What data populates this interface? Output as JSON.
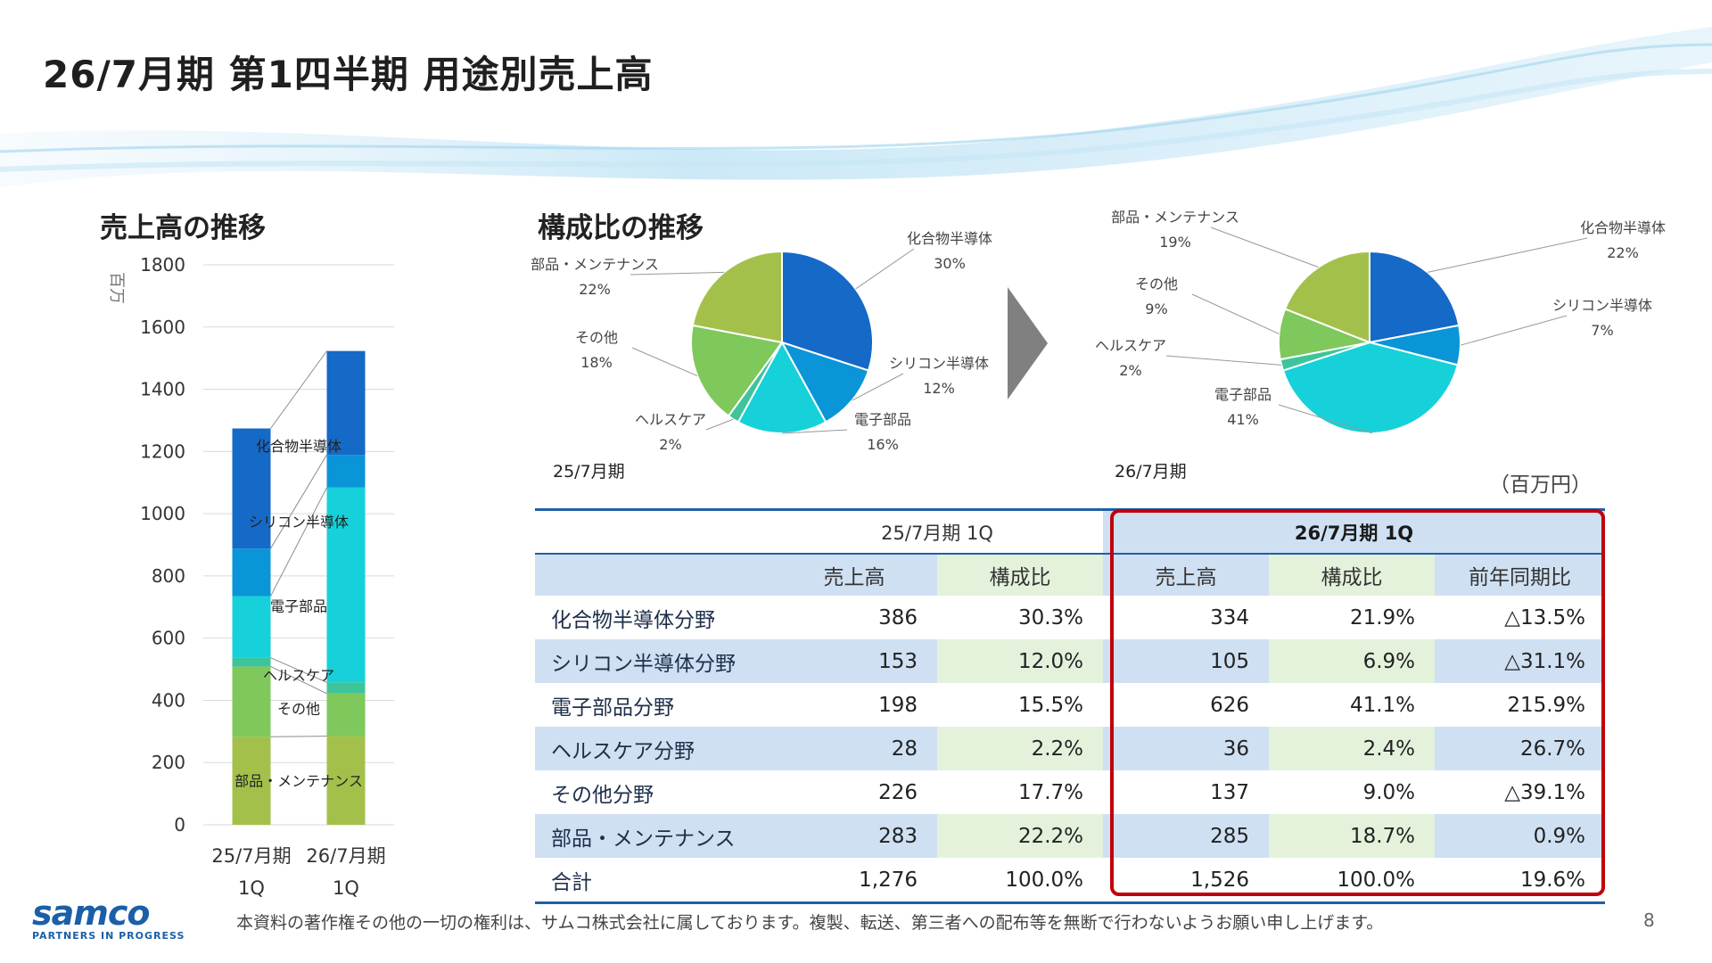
{
  "title": "26/7月期 第1四半期 用途別売上高",
  "sections": {
    "left_title": "売上高の推移",
    "right_title": "構成比の推移"
  },
  "chart_data": [
    {
      "type": "bar",
      "stacked": true,
      "title": "売上高の推移",
      "ylabel": "百万",
      "ylim": [
        0,
        1800
      ],
      "yticks": [
        "0",
        "200",
        "400",
        "600",
        "800",
        "1000",
        "1200",
        "1400",
        "1600",
        "1800"
      ],
      "categories": [
        [
          "25/7月期",
          "1Q"
        ],
        [
          "26/7月期",
          "1Q"
        ]
      ],
      "series": [
        {
          "name": "部品・メンテナンス",
          "values": [
            283,
            285
          ],
          "color": "#a3c14a"
        },
        {
          "name": "その他",
          "values": [
            226,
            137
          ],
          "color": "#7ec85c"
        },
        {
          "name": "ヘルスケア",
          "values": [
            28,
            36
          ],
          "color": "#3dc49a"
        },
        {
          "name": "電子部品",
          "values": [
            198,
            626
          ],
          "color": "#16d1d9"
        },
        {
          "name": "シリコン半導体",
          "values": [
            153,
            105
          ],
          "color": "#0a95d8"
        },
        {
          "name": "化合物半導体",
          "values": [
            386,
            334
          ],
          "color": "#1569c7"
        }
      ]
    },
    {
      "type": "pie",
      "caption": "25/7月期",
      "slices": [
        {
          "label": "化合物半導体",
          "pct": "30%",
          "value": 30,
          "color": "#1569c7"
        },
        {
          "label": "シリコン半導体",
          "pct": "12%",
          "value": 12,
          "color": "#0a95d8"
        },
        {
          "label": "電子部品",
          "pct": "16%",
          "value": 16,
          "color": "#16d1d9"
        },
        {
          "label": "ヘルスケア",
          "pct": "2%",
          "value": 2,
          "color": "#3dc49a"
        },
        {
          "label": "その他",
          "pct": "18%",
          "value": 18,
          "color": "#7ec85c"
        },
        {
          "label": "部品・メンテナンス",
          "pct": "22%",
          "value": 22,
          "color": "#a3c14a"
        }
      ]
    },
    {
      "type": "pie",
      "caption": "26/7月期",
      "slices": [
        {
          "label": "化合物半導体",
          "pct": "22%",
          "value": 22,
          "color": "#1569c7"
        },
        {
          "label": "シリコン半導体",
          "pct": "7%",
          "value": 7,
          "color": "#0a95d8"
        },
        {
          "label": "電子部品",
          "pct": "41%",
          "value": 41,
          "color": "#16d1d9"
        },
        {
          "label": "ヘルスケア",
          "pct": "2%",
          "value": 2,
          "color": "#3dc49a"
        },
        {
          "label": "その他",
          "pct": "9%",
          "value": 9,
          "color": "#7ec85c"
        },
        {
          "label": "部品・メンテナンス",
          "pct": "19%",
          "value": 19,
          "color": "#a3c14a"
        }
      ]
    }
  ],
  "table": {
    "unit": "（百万円）",
    "period_prev": "25/7月期 1Q",
    "period_curr": "26/7月期 1Q",
    "col_sales": "売上高",
    "col_ratio": "構成比",
    "col_yoy": "前年同期比",
    "rows": [
      {
        "label": "化合物半導体分野",
        "prev_sales": "386",
        "prev_ratio": "30.3%",
        "curr_sales": "334",
        "curr_ratio": "21.9%",
        "yoy": "△13.5%"
      },
      {
        "label": "シリコン半導体分野",
        "prev_sales": "153",
        "prev_ratio": "12.0%",
        "curr_sales": "105",
        "curr_ratio": "6.9%",
        "yoy": "△31.1%"
      },
      {
        "label": "電子部品分野",
        "prev_sales": "198",
        "prev_ratio": "15.5%",
        "curr_sales": "626",
        "curr_ratio": "41.1%",
        "yoy": "215.9%"
      },
      {
        "label": "ヘルスケア分野",
        "prev_sales": "28",
        "prev_ratio": "2.2%",
        "curr_sales": "36",
        "curr_ratio": "2.4%",
        "yoy": "26.7%"
      },
      {
        "label": "その他分野",
        "prev_sales": "226",
        "prev_ratio": "17.7%",
        "curr_sales": "137",
        "curr_ratio": "9.0%",
        "yoy": "△39.1%"
      },
      {
        "label": "部品・メンテナンス",
        "prev_sales": "283",
        "prev_ratio": "22.2%",
        "curr_sales": "285",
        "curr_ratio": "18.7%",
        "yoy": "0.9%"
      },
      {
        "label": "合計",
        "prev_sales": "1,276",
        "prev_ratio": "100.0%",
        "curr_sales": "1,526",
        "curr_ratio": "100.0%",
        "yoy": "19.6%"
      }
    ]
  },
  "footer": {
    "copyright": "本資料の著作権その他の一切の権利は、サムコ株式会社に属しております。複製、転送、第三者への配布等を無断で行わないようお願い申し上げます。",
    "page": "8"
  },
  "logo": {
    "name": "samco",
    "tagline": "PARTNERS IN PROGRESS"
  }
}
